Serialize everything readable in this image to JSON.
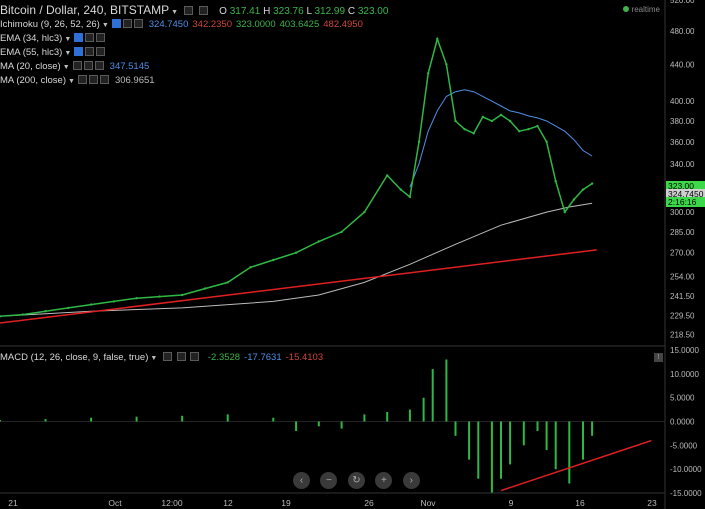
{
  "title": "Bitcoin / Dollar, 240, BITSTAMP",
  "ohlc": [
    {
      "label": "O",
      "value": "317.41"
    },
    {
      "label": "H",
      "value": "323.76"
    },
    {
      "label": "L",
      "value": "312.99"
    },
    {
      "label": "C",
      "value": "323.00"
    }
  ],
  "realtime_label": "realtime",
  "indicators": [
    {
      "name": "Ichimoku (9, 26, 52, 26)",
      "values": [
        {
          "text": "324.7450",
          "color": "#4f8fe6"
        },
        {
          "text": "342.2350",
          "color": "#d0453a"
        },
        {
          "text": "323.0000",
          "color": "#3bb54a"
        },
        {
          "text": "403.6425",
          "color": "#3bb54a"
        },
        {
          "text": "482.4950",
          "color": "#d0453a"
        }
      ],
      "eye": true
    },
    {
      "name": "EMA (34, hlc3)",
      "values": [],
      "eye": true
    },
    {
      "name": "EMA (55, hlc3)",
      "values": [],
      "eye": true
    },
    {
      "name": "MA (20, close)",
      "values": [
        {
          "text": "347.5145",
          "color": "#4f8fe6"
        }
      ],
      "eye": false
    },
    {
      "name": "MA (200, close)",
      "values": [
        {
          "text": "306.9651",
          "color": "#bbbbbb"
        }
      ],
      "eye": false
    }
  ],
  "macd": {
    "name": "MACD (12, 26, close, 9, false, true)",
    "values": [
      {
        "text": "-2.3528",
        "color": "#3bb54a"
      },
      {
        "text": "-17.7631",
        "color": "#4f8fe6"
      },
      {
        "text": "-15.4103",
        "color": "#d0453a"
      }
    ]
  },
  "price_tags": [
    {
      "text": "323.00",
      "color": "#3bd84a"
    },
    {
      "text": "324.7450",
      "color": "#cfcfcf"
    },
    {
      "text": "2:16:16",
      "color": "#3bd84a"
    }
  ],
  "chart_data": {
    "type": "line",
    "main": {
      "y_ticks": [
        "520.00",
        "480.00",
        "440.00",
        "400.00",
        "380.00",
        "360.00",
        "340.00",
        "320.00",
        "300.00",
        "285.00",
        "270.00",
        "254.00",
        "241.50",
        "229.50",
        "218.50"
      ],
      "scale": "log",
      "ylim": [
        212,
        520
      ],
      "price": {
        "x": [
          0,
          5,
          10,
          15,
          20,
          25,
          30,
          35,
          40,
          45,
          50,
          55,
          60,
          65,
          70,
          75,
          80,
          85,
          88,
          90,
          92,
          94,
          96,
          98,
          100,
          102,
          104,
          106,
          108,
          110,
          112,
          114,
          116,
          118,
          120,
          122,
          124,
          126,
          128,
          130
        ],
        "y": [
          229,
          230,
          232,
          234,
          236,
          238,
          240,
          241,
          242,
          246,
          250,
          260,
          265,
          270,
          278,
          285,
          300,
          330,
          318,
          312,
          360,
          430,
          470,
          440,
          380,
          372,
          368,
          384,
          380,
          386,
          380,
          370,
          372,
          375,
          360,
          325,
          300,
          310,
          318,
          323
        ],
        "color": "#2fb845"
      },
      "ma_20": {
        "x": [
          90,
          92,
          94,
          96,
          98,
          100,
          102,
          104,
          106,
          108,
          110,
          112,
          114,
          116,
          118,
          120,
          122,
          124,
          126,
          128,
          130
        ],
        "y": [
          320,
          340,
          370,
          390,
          405,
          410,
          412,
          410,
          405,
          400,
          395,
          390,
          388,
          385,
          383,
          380,
          375,
          370,
          362,
          352,
          347
        ],
        "color": "#4f8fe6"
      },
      "ma_200": {
        "x": [
          0,
          20,
          40,
          60,
          70,
          80,
          90,
          100,
          110,
          120,
          125,
          130
        ],
        "y": [
          229,
          232,
          234,
          238,
          242,
          250,
          262,
          276,
          290,
          300,
          304,
          307
        ],
        "color": "#bbbbbb"
      },
      "trendline": {
        "x": [
          0,
          131
        ],
        "y": [
          225,
          272
        ],
        "color": "#e02020"
      }
    },
    "macd": {
      "y_ticks": [
        "15.0000",
        "10.0000",
        "5.0000",
        "0.0000",
        "-5.0000",
        "-10.0000",
        "-15.0000"
      ],
      "ylim": [
        -15,
        15
      ],
      "histogram": {
        "x": [
          0,
          10,
          20,
          30,
          40,
          50,
          60,
          65,
          70,
          75,
          80,
          85,
          90,
          93,
          95,
          98,
          100,
          103,
          105,
          108,
          110,
          112,
          115,
          118,
          120,
          122,
          125,
          128,
          130
        ],
        "y": [
          0.3,
          0.5,
          0.8,
          1,
          1.2,
          1.5,
          0.8,
          -2,
          -1,
          -1.5,
          1.5,
          2,
          2.5,
          5,
          11,
          13,
          -3,
          -8,
          -12,
          -15,
          -12,
          -9,
          -5,
          -2,
          -6,
          -10,
          -13,
          -8,
          -3
        ],
        "color": "#2fb845"
      },
      "trendline": {
        "x": [
          110,
          143
        ],
        "y": [
          -14.5,
          -4
        ],
        "color": "#e02020"
      }
    },
    "x_ticks": [
      "21",
      "Oct",
      "12:00",
      "12",
      "19",
      "26",
      "Nov",
      "9",
      "16",
      "23"
    ]
  }
}
